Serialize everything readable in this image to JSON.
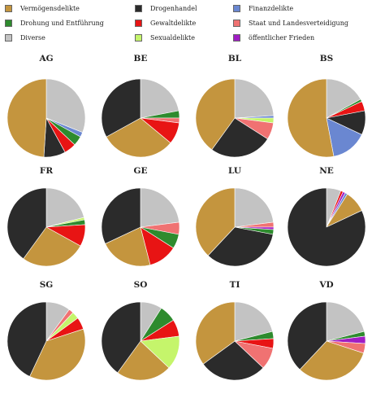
{
  "legend": [
    {
      "label": "Vermögensdelikte",
      "color": "#C4953E"
    },
    {
      "label": "Drogenhandel",
      "color": "#2B2B2B"
    },
    {
      "label": "Finanzdelikte",
      "color": "#6A87D1"
    },
    {
      "label": "Drohung und Entführung",
      "color": "#2E8B2E"
    },
    {
      "label": "Gewaltdelikte",
      "color": "#E81414"
    },
    {
      "label": "Staat und Landesverteidigung",
      "color": "#F07272"
    },
    {
      "label": "Diverse",
      "color": "#C3C3C3"
    },
    {
      "label": "Sexualdelikte",
      "color": "#C5F56B"
    },
    {
      "label": "öffentlicher Frieden",
      "color": "#A01DC4"
    }
  ],
  "chart_data": [
    {
      "type": "pie",
      "title": "AG",
      "slices": [
        {
          "label": "Diverse",
          "value": 31
        },
        {
          "label": "Finanzdelikte",
          "value": 2
        },
        {
          "label": "Drohung und Entführung",
          "value": 4
        },
        {
          "label": "Gewaltdelikte",
          "value": 5
        },
        {
          "label": "Drogenhandel",
          "value": 9
        },
        {
          "label": "Vermögensdelikte",
          "value": 49
        }
      ]
    },
    {
      "type": "pie",
      "title": "BE",
      "slices": [
        {
          "label": "Diverse",
          "value": 22
        },
        {
          "label": "Drohung und Entführung",
          "value": 3
        },
        {
          "label": "Staat und Landesverteidigung",
          "value": 2
        },
        {
          "label": "Gewaltdelikte",
          "value": 9
        },
        {
          "label": "Vermögensdelikte",
          "value": 31
        },
        {
          "label": "Drogenhandel",
          "value": 33
        }
      ]
    },
    {
      "type": "pie",
      "title": "BL",
      "slices": [
        {
          "label": "Diverse",
          "value": 24
        },
        {
          "label": "Finanzdelikte",
          "value": 1
        },
        {
          "label": "Sexualdelikte",
          "value": 2
        },
        {
          "label": "Staat und Landesverteidigung",
          "value": 7
        },
        {
          "label": "Drogenhandel",
          "value": 26
        },
        {
          "label": "Vermögensdelikte",
          "value": 40
        }
      ]
    },
    {
      "type": "pie",
      "title": "BS",
      "slices": [
        {
          "label": "Diverse",
          "value": 17
        },
        {
          "label": "Drohung und Entführung",
          "value": 1
        },
        {
          "label": "Gewaltdelikte",
          "value": 4
        },
        {
          "label": "Drogenhandel",
          "value": 10
        },
        {
          "label": "Finanzdelikte",
          "value": 15
        },
        {
          "label": "Vermögensdelikte",
          "value": 53
        }
      ]
    },
    {
      "type": "pie",
      "title": "FR",
      "slices": [
        {
          "label": "Diverse",
          "value": 21
        },
        {
          "label": "Sexualdelikte",
          "value": 1
        },
        {
          "label": "Drohung und Entführung",
          "value": 2
        },
        {
          "label": "Gewaltdelikte",
          "value": 9
        },
        {
          "label": "Vermögensdelikte",
          "value": 27
        },
        {
          "label": "Drogenhandel",
          "value": 40
        }
      ]
    },
    {
      "type": "pie",
      "title": "GE",
      "slices": [
        {
          "label": "Diverse",
          "value": 23
        },
        {
          "label": "Staat und Landesverteidigung",
          "value": 5
        },
        {
          "label": "Drohung und Entführung",
          "value": 6
        },
        {
          "label": "Gewaltdelikte",
          "value": 12
        },
        {
          "label": "Vermögensdelikte",
          "value": 22
        },
        {
          "label": "Drogenhandel",
          "value": 32
        }
      ]
    },
    {
      "type": "pie",
      "title": "LU",
      "slices": [
        {
          "label": "Diverse",
          "value": 23
        },
        {
          "label": "Staat und Landesverteidigung",
          "value": 2
        },
        {
          "label": "öffentlicher Frieden",
          "value": 1
        },
        {
          "label": "Drohung und Entführung",
          "value": 2
        },
        {
          "label": "Drogenhandel",
          "value": 34
        },
        {
          "label": "Vermögensdelikte",
          "value": 38
        }
      ]
    },
    {
      "type": "pie",
      "title": "NE",
      "slices": [
        {
          "label": "Diverse",
          "value": 6
        },
        {
          "label": "Gewaltdelikte",
          "value": 1
        },
        {
          "label": "öffentlicher Frieden",
          "value": 1
        },
        {
          "label": "Finanzdelikte",
          "value": 1
        },
        {
          "label": "Vermögensdelikte",
          "value": 9
        },
        {
          "label": "Drogenhandel",
          "value": 82
        }
      ]
    },
    {
      "type": "pie",
      "title": "SG",
      "slices": [
        {
          "label": "Diverse",
          "value": 10
        },
        {
          "label": "Staat und Landesverteidigung",
          "value": 2
        },
        {
          "label": "Sexualdelikte",
          "value": 3
        },
        {
          "label": "Gewaltdelikte",
          "value": 5
        },
        {
          "label": "Vermögensdelikte",
          "value": 37
        },
        {
          "label": "Drogenhandel",
          "value": 43
        }
      ]
    },
    {
      "type": "pie",
      "title": "SO",
      "slices": [
        {
          "label": "Diverse",
          "value": 9
        },
        {
          "label": "Drohung und Entführung",
          "value": 7
        },
        {
          "label": "Gewaltdelikte",
          "value": 7
        },
        {
          "label": "Sexualdelikte",
          "value": 14
        },
        {
          "label": "Vermögensdelikte",
          "value": 23
        },
        {
          "label": "Drogenhandel",
          "value": 40
        }
      ]
    },
    {
      "type": "pie",
      "title": "TI",
      "slices": [
        {
          "label": "Diverse",
          "value": 21
        },
        {
          "label": "Drohung und Entführung",
          "value": 3
        },
        {
          "label": "Gewaltdelikte",
          "value": 4
        },
        {
          "label": "Staat und Landesverteidigung",
          "value": 9
        },
        {
          "label": "Drogenhandel",
          "value": 28
        },
        {
          "label": "Vermögensdelikte",
          "value": 35
        }
      ]
    },
    {
      "type": "pie",
      "title": "VD",
      "slices": [
        {
          "label": "Diverse",
          "value": 21
        },
        {
          "label": "Drohung und Entführung",
          "value": 2
        },
        {
          "label": "öffentlicher Frieden",
          "value": 3
        },
        {
          "label": "Staat und Landesverteidigung",
          "value": 4
        },
        {
          "label": "Vermögensdelikte",
          "value": 32
        },
        {
          "label": "Drogenhandel",
          "value": 38
        }
      ]
    }
  ]
}
